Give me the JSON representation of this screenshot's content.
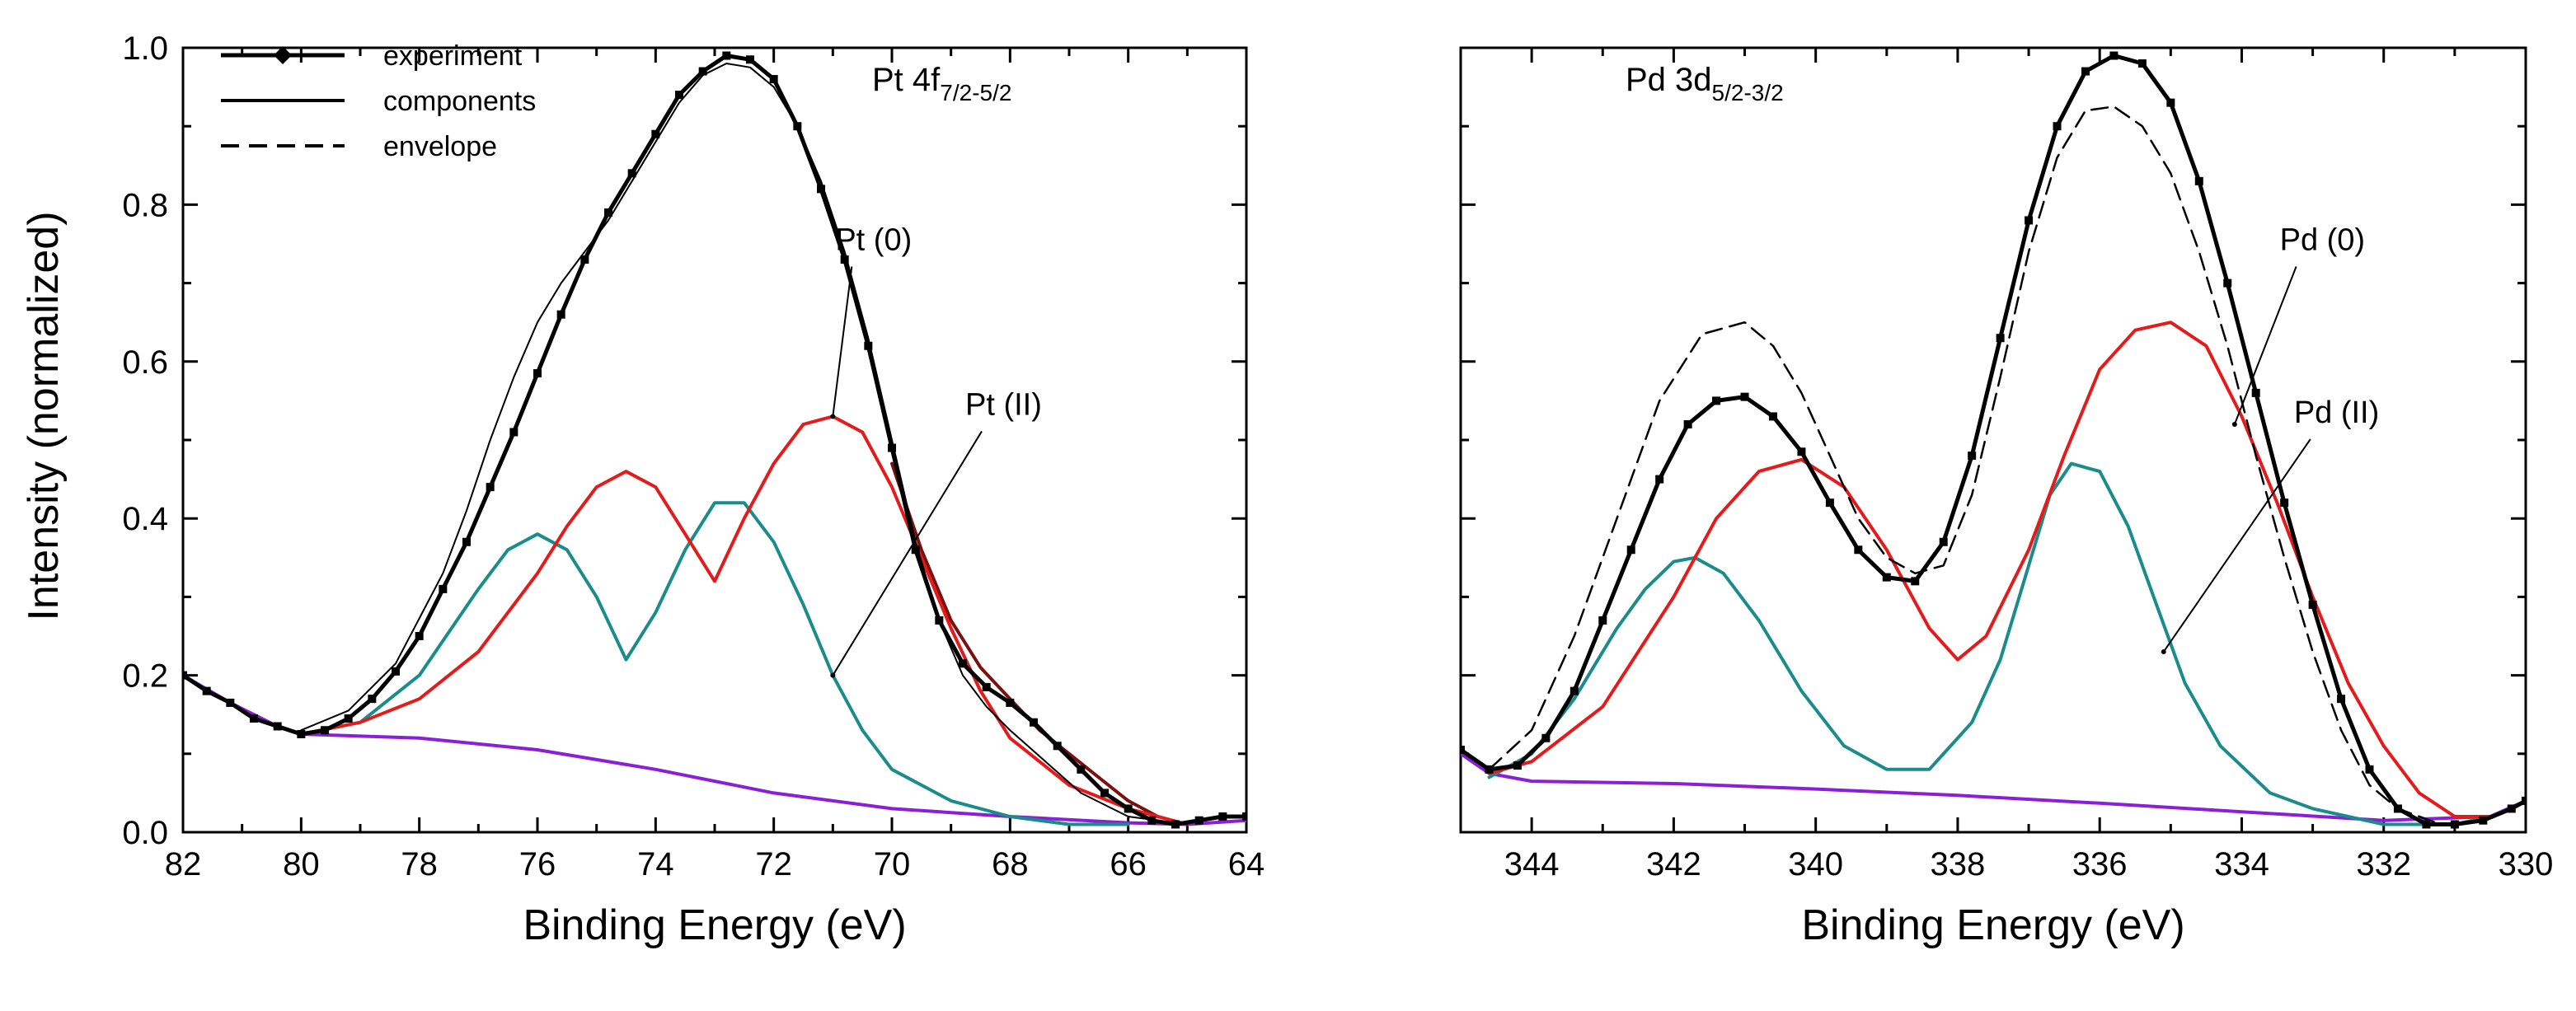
{
  "figure": {
    "ylabel": "Intensity (normalized)",
    "legend": {
      "placement": "top-left of left panel",
      "items": [
        {
          "label": "experiment",
          "style": "line-with-markers"
        },
        {
          "label": "components",
          "style": "solid"
        },
        {
          "label": "envelope",
          "style": "dashed"
        }
      ]
    },
    "colors": {
      "experiment": "#000000",
      "Pt0": "#e51a1a",
      "PtII": "#1a8c8c",
      "background": "#8a1fd6",
      "envelope": "#000000",
      "component_dark": "#7a1010"
    }
  },
  "chart_data": [
    {
      "type": "line",
      "title": "Pt 4f",
      "title_subscript": "7/2-5/2",
      "xlabel": "Binding Energy (eV)",
      "ylabel": "Intensity (normalized)",
      "xlim": [
        82,
        64
      ],
      "ylim": [
        0.0,
        1.0
      ],
      "xticks": [
        82,
        80,
        78,
        76,
        74,
        72,
        70,
        68,
        66,
        64
      ],
      "yticks": [
        0.0,
        0.2,
        0.4,
        0.6,
        0.8,
        1.0
      ],
      "ytick_labels": [
        "0.0",
        "0.2",
        "0.4",
        "0.6",
        "0.8",
        "1.0"
      ],
      "annotations": [
        {
          "text": "Pt (0)",
          "at": [
            71.0,
            0.53
          ],
          "label_at": [
            70.4,
            0.74
          ]
        },
        {
          "text": "Pt (II)",
          "at": [
            71.0,
            0.2
          ],
          "label_at": [
            68.2,
            0.53
          ]
        }
      ],
      "series": [
        {
          "name": "experiment",
          "color": "#000000",
          "markers": true,
          "x": [
            82.0,
            81.6,
            81.2,
            80.8,
            80.4,
            80.0,
            79.6,
            79.2,
            78.8,
            78.4,
            78.0,
            77.6,
            77.2,
            76.8,
            76.4,
            76.0,
            75.6,
            75.2,
            74.8,
            74.4,
            74.0,
            73.6,
            73.2,
            72.8,
            72.4,
            72.0,
            71.6,
            71.2,
            70.8,
            70.4,
            70.0,
            69.6,
            69.2,
            68.8,
            68.4,
            68.0,
            67.6,
            67.2,
            66.8,
            66.4,
            66.0,
            65.6,
            65.2,
            64.8,
            64.4,
            64.0
          ],
          "y": [
            0.2,
            0.18,
            0.165,
            0.145,
            0.135,
            0.125,
            0.13,
            0.145,
            0.17,
            0.205,
            0.25,
            0.31,
            0.37,
            0.44,
            0.51,
            0.585,
            0.66,
            0.73,
            0.79,
            0.84,
            0.89,
            0.94,
            0.97,
            0.99,
            0.985,
            0.96,
            0.9,
            0.82,
            0.73,
            0.62,
            0.49,
            0.36,
            0.27,
            0.215,
            0.185,
            0.165,
            0.14,
            0.11,
            0.08,
            0.05,
            0.03,
            0.015,
            0.01,
            0.015,
            0.02,
            0.02
          ]
        },
        {
          "name": "envelope",
          "color": "#000000",
          "style": "thin",
          "x": [
            80.0,
            79.2,
            78.4,
            77.6,
            77.2,
            76.8,
            76.4,
            76.0,
            75.6,
            75.2,
            74.8,
            74.4,
            74.0,
            73.6,
            73.2,
            72.8,
            72.4,
            72.0,
            71.6,
            71.2,
            70.8,
            70.4,
            70.0,
            69.6,
            69.2,
            68.8,
            68.4,
            68.0,
            67.4,
            66.8,
            66.0,
            65.0
          ],
          "y": [
            0.13,
            0.155,
            0.215,
            0.33,
            0.41,
            0.5,
            0.58,
            0.65,
            0.7,
            0.74,
            0.78,
            0.83,
            0.88,
            0.93,
            0.965,
            0.98,
            0.975,
            0.95,
            0.9,
            0.83,
            0.74,
            0.63,
            0.5,
            0.37,
            0.27,
            0.2,
            0.16,
            0.13,
            0.09,
            0.05,
            0.02,
            0.01
          ]
        },
        {
          "name": "Pt (0) 4f7/2",
          "color": "#e51a1a",
          "x": [
            80.0,
            79.0,
            78.0,
            77.0,
            76.0,
            75.5,
            75.0,
            74.5,
            74.0,
            73.5,
            73.0,
            72.5,
            72.0,
            71.5,
            71.0,
            70.5,
            70.0,
            69.5,
            69.0,
            68.5,
            68.0,
            67.0,
            66.0,
            65.0
          ],
          "y": [
            0.125,
            0.14,
            0.17,
            0.23,
            0.33,
            0.39,
            0.44,
            0.46,
            0.44,
            0.38,
            0.32,
            0.4,
            0.47,
            0.52,
            0.53,
            0.51,
            0.44,
            0.35,
            0.26,
            0.18,
            0.12,
            0.06,
            0.03,
            0.01
          ]
        },
        {
          "name": "Pt (II)",
          "color": "#1a8c8c",
          "x": [
            80.0,
            79.0,
            78.0,
            77.0,
            76.5,
            76.0,
            75.5,
            75.0,
            74.5,
            74.0,
            73.5,
            73.0,
            72.5,
            72.0,
            71.5,
            71.0,
            70.5,
            70.0,
            69.0,
            68.0,
            67.0,
            66.0
          ],
          "y": [
            0.125,
            0.14,
            0.2,
            0.31,
            0.36,
            0.38,
            0.36,
            0.3,
            0.22,
            0.28,
            0.36,
            0.42,
            0.42,
            0.37,
            0.29,
            0.2,
            0.13,
            0.08,
            0.04,
            0.02,
            0.01,
            0.01
          ]
        },
        {
          "name": "components (dark)",
          "color": "#7a1010",
          "x": [
            70.0,
            69.5,
            69.0,
            68.5,
            68.0,
            67.5,
            67.0,
            66.5,
            66.0,
            65.5,
            65.0
          ],
          "y": [
            0.47,
            0.36,
            0.27,
            0.21,
            0.17,
            0.13,
            0.1,
            0.07,
            0.04,
            0.02,
            0.01
          ]
        },
        {
          "name": "background",
          "color": "#8a1fd6",
          "x": [
            82.0,
            81.2,
            80.4,
            80.0,
            78.0,
            76.0,
            74.0,
            72.0,
            70.0,
            68.0,
            66.0,
            65.0,
            64.0
          ],
          "y": [
            0.2,
            0.165,
            0.135,
            0.125,
            0.12,
            0.105,
            0.08,
            0.05,
            0.03,
            0.02,
            0.012,
            0.01,
            0.015
          ]
        }
      ]
    },
    {
      "type": "line",
      "title": "Pd 3d",
      "title_subscript": "5/2-3/2",
      "xlabel": "Binding Energy (eV)",
      "xlim": [
        345,
        330
      ],
      "ylim": [
        0.0,
        1.0
      ],
      "xticks": [
        344,
        342,
        340,
        338,
        336,
        334,
        332,
        330
      ],
      "yticks": [
        0.0,
        0.2,
        0.4,
        0.6,
        0.8,
        1.0
      ],
      "annotations": [
        {
          "text": "Pd (0)",
          "at": [
            334.1,
            0.52
          ],
          "label_at": [
            333.0,
            0.74
          ]
        },
        {
          "text": "Pd (II)",
          "at": [
            335.1,
            0.23
          ],
          "label_at": [
            332.8,
            0.52
          ]
        }
      ],
      "series": [
        {
          "name": "experiment",
          "color": "#000000",
          "markers": true,
          "x": [
            345.0,
            344.6,
            344.2,
            343.8,
            343.4,
            343.0,
            342.6,
            342.2,
            341.8,
            341.4,
            341.0,
            340.6,
            340.2,
            339.8,
            339.4,
            339.0,
            338.6,
            338.2,
            337.8,
            337.4,
            337.0,
            336.6,
            336.2,
            335.8,
            335.4,
            335.0,
            334.6,
            334.2,
            333.8,
            333.4,
            333.0,
            332.6,
            332.2,
            331.8,
            331.4,
            331.0,
            330.6,
            330.2,
            330.0
          ],
          "y": [
            0.105,
            0.08,
            0.085,
            0.12,
            0.18,
            0.27,
            0.36,
            0.45,
            0.52,
            0.55,
            0.555,
            0.53,
            0.485,
            0.42,
            0.36,
            0.325,
            0.32,
            0.37,
            0.48,
            0.63,
            0.78,
            0.9,
            0.97,
            0.99,
            0.98,
            0.93,
            0.83,
            0.7,
            0.56,
            0.42,
            0.29,
            0.17,
            0.08,
            0.03,
            0.01,
            0.01,
            0.015,
            0.03,
            0.04
          ]
        },
        {
          "name": "envelope",
          "color": "#000000",
          "style": "dashed",
          "x": [
            344.6,
            344.0,
            343.4,
            342.8,
            342.2,
            341.6,
            341.0,
            340.6,
            340.2,
            339.8,
            339.4,
            339.0,
            338.6,
            338.2,
            337.8,
            337.4,
            337.0,
            336.6,
            336.2,
            335.8,
            335.4,
            335.0,
            334.6,
            334.2,
            333.8,
            333.4,
            333.0,
            332.6,
            332.2,
            331.8,
            331.2
          ],
          "y": [
            0.08,
            0.13,
            0.25,
            0.4,
            0.55,
            0.635,
            0.65,
            0.62,
            0.56,
            0.48,
            0.4,
            0.35,
            0.33,
            0.34,
            0.43,
            0.58,
            0.74,
            0.86,
            0.92,
            0.925,
            0.9,
            0.84,
            0.74,
            0.62,
            0.48,
            0.35,
            0.23,
            0.13,
            0.06,
            0.03,
            0.01
          ]
        },
        {
          "name": "Pd (0)",
          "color": "#e51a1a",
          "x": [
            344.6,
            344.0,
            343.0,
            342.0,
            341.4,
            340.8,
            340.2,
            339.6,
            339.0,
            338.4,
            338.0,
            337.6,
            337.0,
            336.5,
            336.0,
            335.5,
            335.0,
            334.5,
            334.0,
            333.5,
            333.0,
            332.5,
            332.0,
            331.5,
            331.0,
            330.5
          ],
          "y": [
            0.075,
            0.09,
            0.16,
            0.3,
            0.4,
            0.46,
            0.475,
            0.44,
            0.36,
            0.26,
            0.22,
            0.25,
            0.36,
            0.48,
            0.59,
            0.64,
            0.65,
            0.62,
            0.53,
            0.42,
            0.3,
            0.19,
            0.11,
            0.05,
            0.02,
            0.02
          ]
        },
        {
          "name": "Pd (II)",
          "color": "#1a8c8c",
          "x": [
            344.6,
            344.0,
            343.4,
            342.8,
            342.4,
            342.0,
            341.7,
            341.3,
            340.8,
            340.2,
            339.6,
            339.0,
            338.4,
            337.8,
            337.4,
            337.0,
            336.7,
            336.4,
            336.0,
            335.6,
            335.2,
            334.8,
            334.3,
            333.6,
            333.0,
            332.0,
            331.0,
            330.5
          ],
          "y": [
            0.07,
            0.1,
            0.17,
            0.26,
            0.31,
            0.345,
            0.35,
            0.33,
            0.27,
            0.18,
            0.11,
            0.08,
            0.08,
            0.14,
            0.22,
            0.34,
            0.43,
            0.47,
            0.46,
            0.39,
            0.29,
            0.19,
            0.11,
            0.05,
            0.03,
            0.01,
            0.01,
            0.02
          ]
        },
        {
          "name": "background",
          "color": "#8a1fd6",
          "x": [
            345.0,
            344.6,
            344.0,
            342.0,
            340.0,
            338.0,
            336.0,
            334.0,
            332.0,
            330.5,
            330.0
          ],
          "y": [
            0.1,
            0.075,
            0.065,
            0.062,
            0.055,
            0.047,
            0.037,
            0.026,
            0.015,
            0.02,
            0.04
          ]
        }
      ]
    }
  ]
}
